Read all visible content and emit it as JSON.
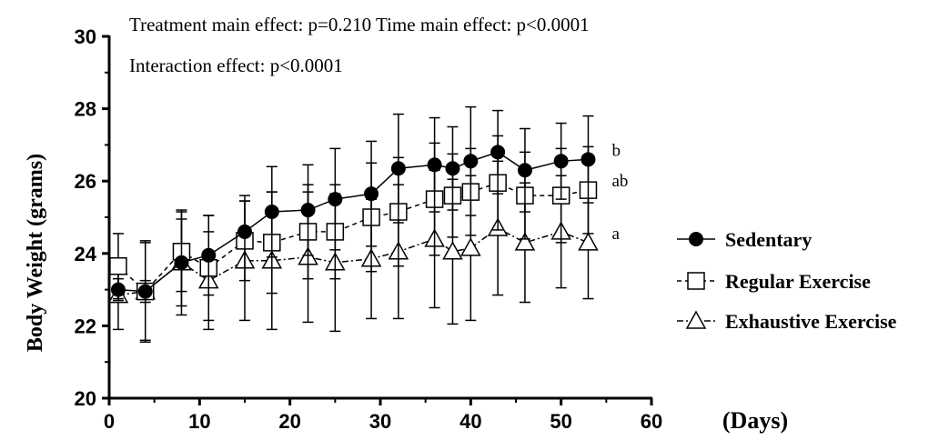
{
  "chart_data": {
    "type": "line",
    "annotations": {
      "line1": "Treatment main effect: p=0.210  Time main effect: p<0.0001",
      "line2": "Interaction effect: p<0.0001"
    },
    "xlabel": "(Days)",
    "ylabel": "Body Weight (grams)",
    "xlim": [
      0,
      60
    ],
    "ylim": [
      20,
      30
    ],
    "xticks": [
      "0",
      "10",
      "20",
      "30",
      "40",
      "50",
      "60"
    ],
    "yticks": [
      "20",
      "22",
      "24",
      "26",
      "28",
      "30"
    ],
    "x": [
      1,
      4,
      8,
      11,
      15,
      18,
      22,
      25,
      29,
      32,
      36,
      38,
      40,
      43,
      46,
      50,
      53
    ],
    "grid": false,
    "legend_position": "right",
    "series": [
      {
        "name": "Sedentary",
        "marker": "filled-circle",
        "line_style": "solid",
        "values": [
          23.0,
          22.95,
          23.75,
          23.95,
          24.6,
          25.15,
          25.2,
          25.5,
          25.65,
          26.35,
          26.45,
          26.35,
          26.55,
          26.8,
          26.3,
          26.55,
          26.6
        ],
        "errors": [
          0.3,
          0.3,
          1.2,
          1.1,
          1.0,
          1.25,
          1.25,
          1.4,
          1.45,
          1.5,
          1.3,
          1.15,
          1.5,
          1.15,
          1.15,
          1.05,
          1.2
        ],
        "significance": "b"
      },
      {
        "name": "Regular Exercise",
        "marker": "open-square",
        "line_style": "dashed",
        "values": [
          23.65,
          22.95,
          24.05,
          23.6,
          24.35,
          24.3,
          24.6,
          24.6,
          25.0,
          25.15,
          25.5,
          25.6,
          25.7,
          25.95,
          25.6,
          25.6,
          25.75
        ],
        "errors": [
          0.9,
          1.4,
          1.1,
          1.45,
          1.1,
          1.4,
          1.3,
          1.3,
          1.5,
          1.5,
          1.55,
          1.15,
          1.2,
          1.3,
          1.2,
          1.3,
          1.2
        ],
        "significance": "ab"
      },
      {
        "name": "Exhaustive Exercise",
        "marker": "open-triangle",
        "line_style": "dashdot",
        "values": [
          22.85,
          22.95,
          23.75,
          23.25,
          23.8,
          23.8,
          23.9,
          23.75,
          23.85,
          24.05,
          24.4,
          24.05,
          24.15,
          24.7,
          24.3,
          24.6,
          24.3
        ],
        "errors": [
          0.95,
          1.35,
          1.45,
          1.35,
          1.65,
          1.9,
          1.8,
          1.9,
          1.65,
          1.85,
          1.9,
          2.0,
          2.0,
          1.85,
          1.65,
          1.55,
          1.55
        ],
        "significance": "a"
      }
    ]
  }
}
